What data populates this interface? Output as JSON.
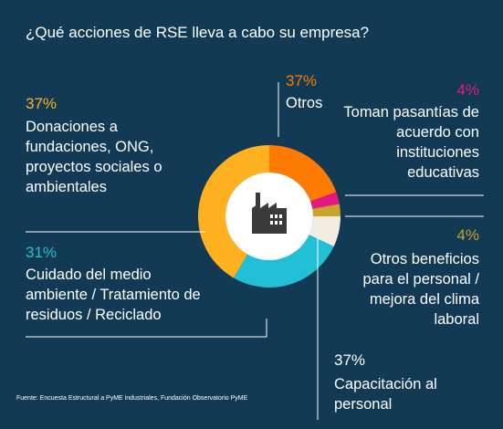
{
  "chart_data": {
    "type": "pie",
    "title": "¿Qué acciones de RSE lleva a cabo su empresa?",
    "slices": [
      {
        "label": "Otros",
        "value": 37,
        "display": "37%",
        "color": "#ff7a00"
      },
      {
        "label": "Toman pasantías de acuerdo con instituciones educativas",
        "value": 4,
        "display": "4%",
        "color": "#e5197d"
      },
      {
        "label": "Otros beneficios para el personal / mejora del clima laboral",
        "value": 4,
        "display": "4%",
        "color": "#c9a32a"
      },
      {
        "label": "Capacitación al personal",
        "value": 37,
        "display": "37%",
        "color": "#f2ede0"
      },
      {
        "label": "Cuidado del medio ambiente / Tratamiento de residuos / Reciclado",
        "value": 31,
        "display": "31%",
        "color": "#22c0d6"
      },
      {
        "label": "Donaciones a fundaciones, ONG, proyectos sociales o ambientales",
        "value": 37,
        "display": "37%",
        "color": "#ffb11f"
      }
    ],
    "center_icon": "factory-icon"
  },
  "source": "Fuente: Encuesta Estructural a PyME industriales, Fundación Observatorio PyME"
}
